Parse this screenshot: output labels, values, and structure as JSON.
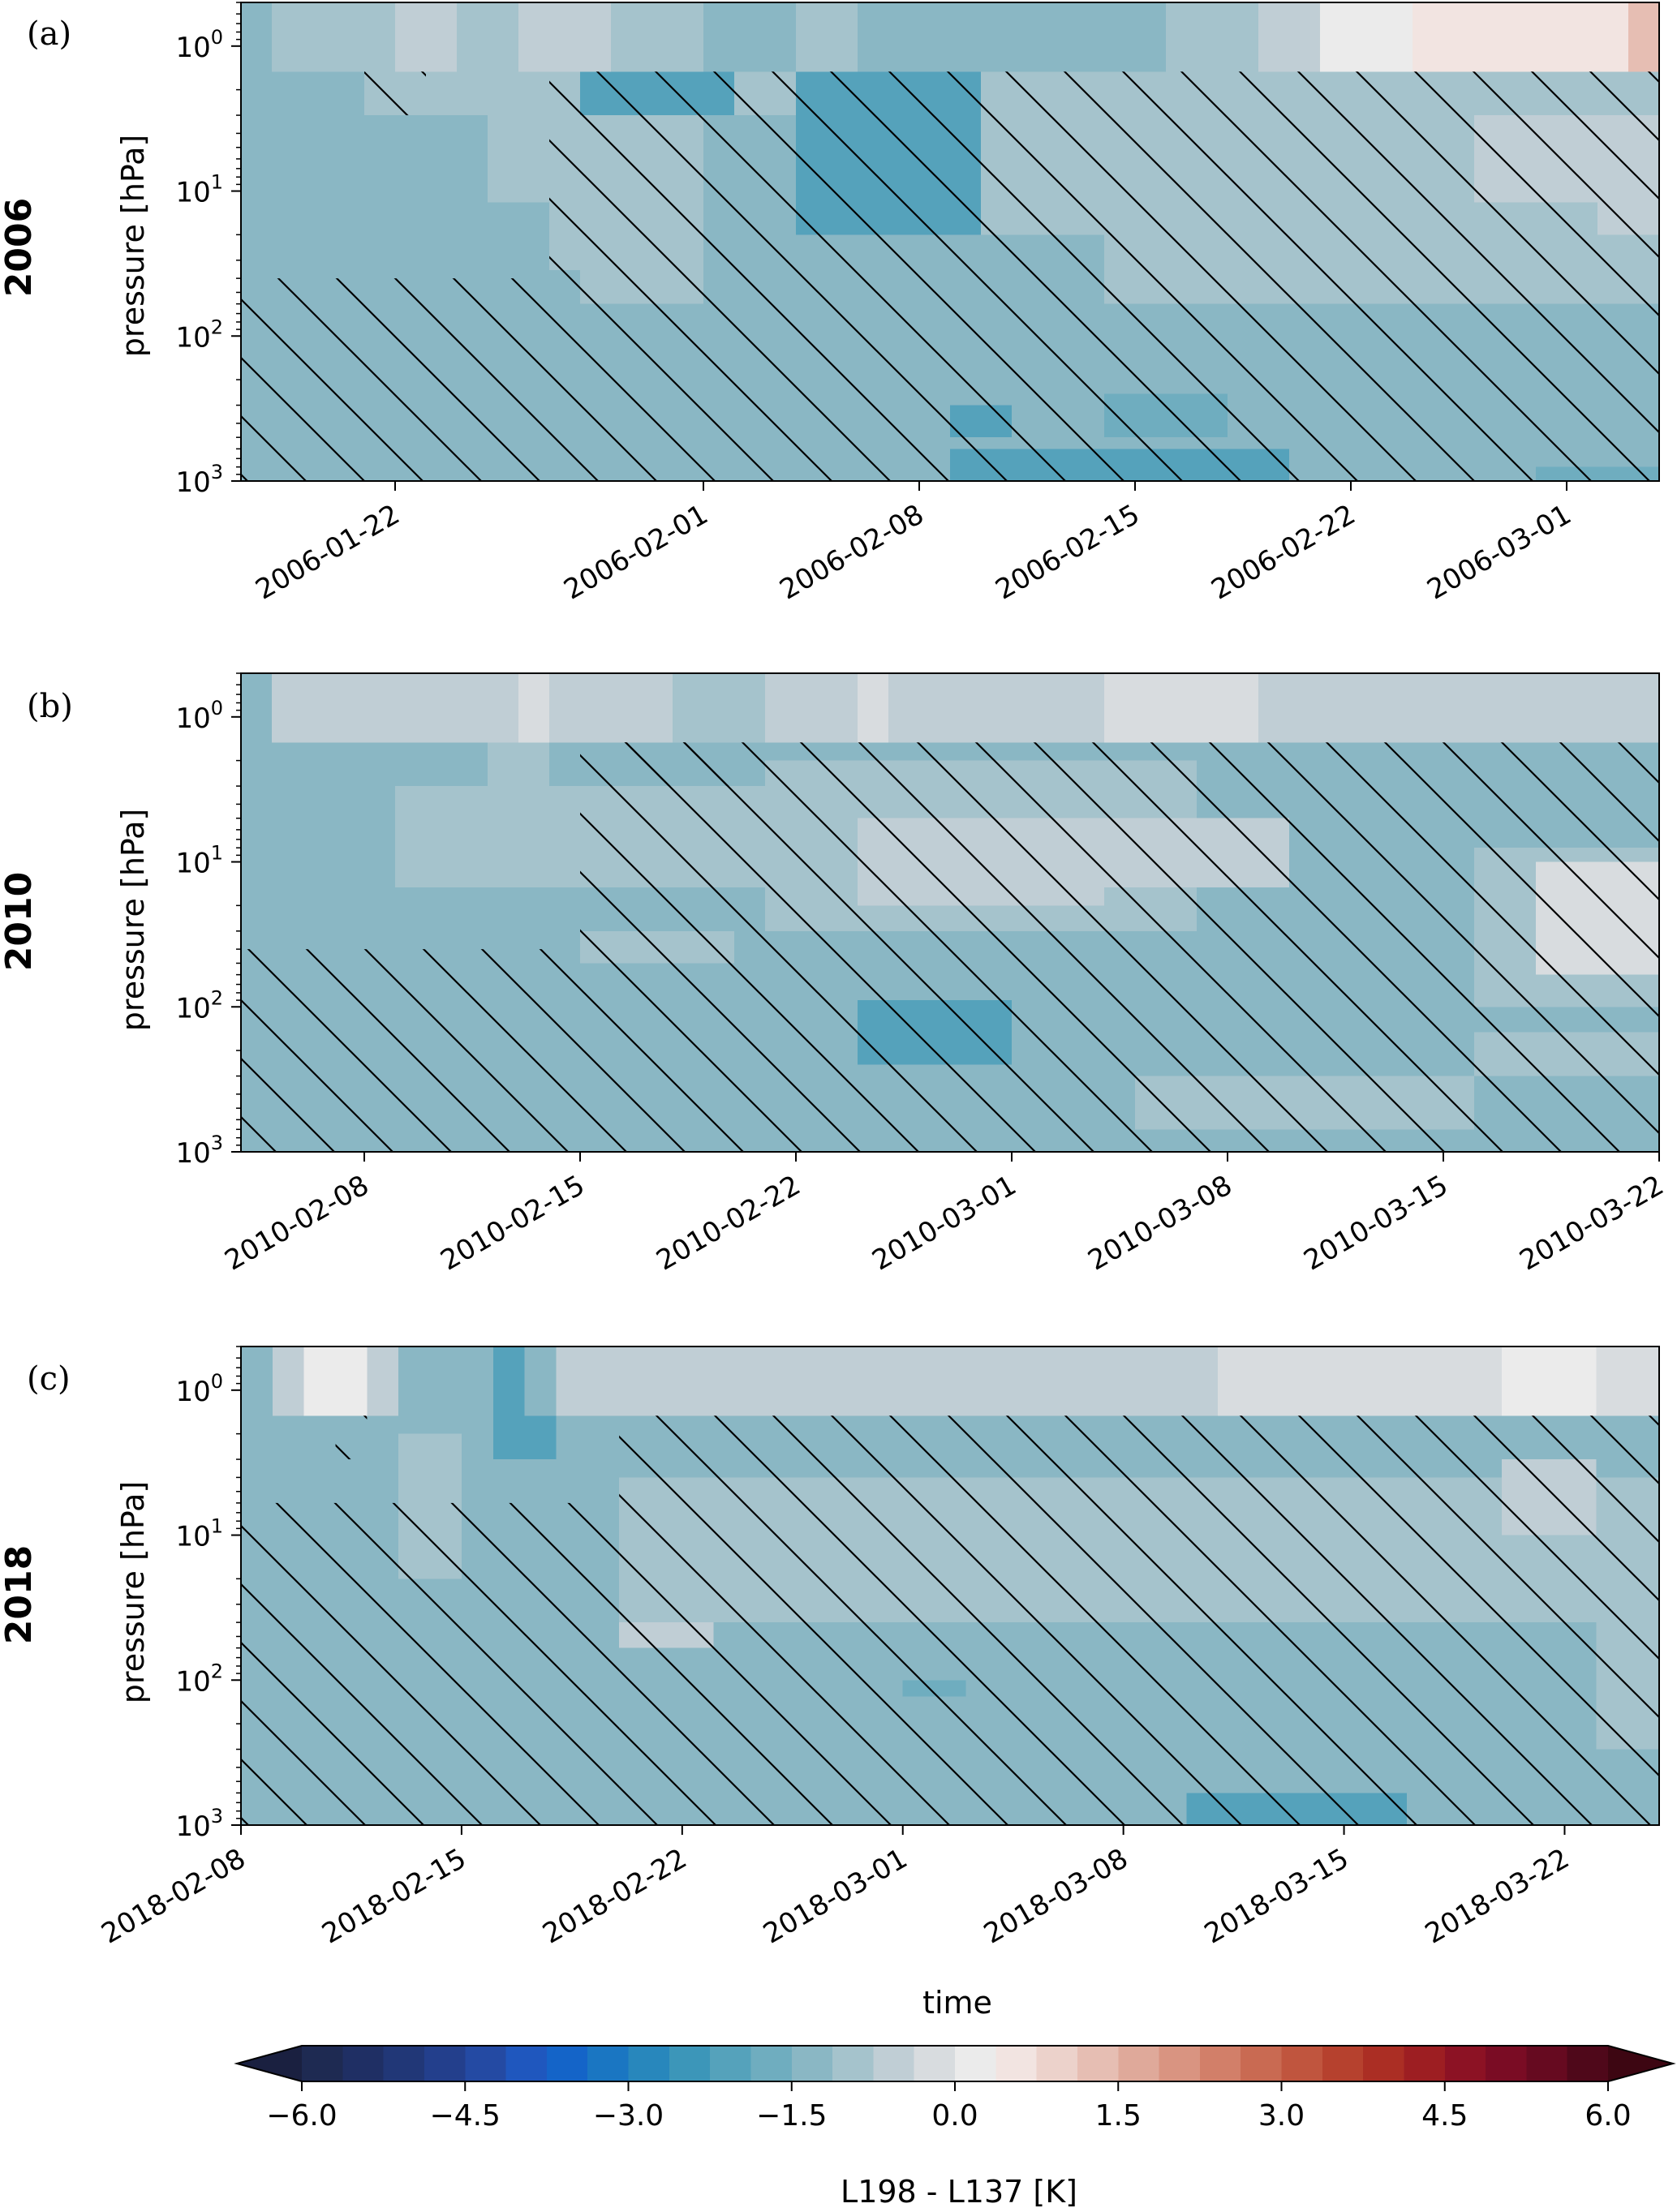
{
  "chart_data": [
    {
      "type": "heatmap",
      "panel_label": "(a)",
      "year_label": "2006",
      "ylabel": "pressure [hPa]",
      "y_scale": "log",
      "y_inverted": true,
      "y_ticks": [
        {
          "base": "10",
          "exp": "0"
        },
        {
          "base": "10",
          "exp": "1"
        },
        {
          "base": "10",
          "exp": "2"
        },
        {
          "base": "10",
          "exp": "3"
        }
      ],
      "x_start": "2006-01-17",
      "x_end": "2006-03-04",
      "x_ticks": [
        "2006-01-22",
        "2006-02-01",
        "2006-02-08",
        "2006-02-15",
        "2006-02-22",
        "2006-03-01"
      ],
      "regions": [
        {
          "t0": 0,
          "t1": 1,
          "p0": 0.5,
          "p1": 1.5,
          "v": 0.0
        },
        {
          "t0": 1,
          "t1": 46,
          "p0": 0.5,
          "p1": 1.5,
          "v": 0.6
        },
        {
          "t0": 5,
          "t1": 7,
          "p0": 0.5,
          "p1": 1.5,
          "v": 1.2
        },
        {
          "t0": 9,
          "t1": 12,
          "p0": 0.5,
          "p1": 1.5,
          "v": 1.0
        },
        {
          "t0": 15,
          "t1": 18,
          "p0": 0.5,
          "p1": 1.5,
          "v": 0.2
        },
        {
          "t0": 20,
          "t1": 24,
          "p0": 0.5,
          "p1": 1.5,
          "v": 0.4
        },
        {
          "t0": 24,
          "t1": 30,
          "p0": 0.5,
          "p1": 1.5,
          "v": 0.2
        },
        {
          "t0": 30,
          "t1": 33,
          "p0": 0.5,
          "p1": 1.5,
          "v": 0.8
        },
        {
          "t0": 33,
          "t1": 35,
          "p0": 0.5,
          "p1": 1.5,
          "v": 1.3
        },
        {
          "t0": 35,
          "t1": 38,
          "p0": 0.5,
          "p1": 1.5,
          "v": 2.0
        },
        {
          "t0": 38,
          "t1": 46,
          "p0": 0.5,
          "p1": 1.5,
          "v": 2.8
        },
        {
          "t0": 45,
          "t1": 46,
          "p0": 0.5,
          "p1": 1.5,
          "v": 3.6
        },
        {
          "t0": 0,
          "t1": 46,
          "p0": 1.5,
          "p1": 1000,
          "v": 0.2
        },
        {
          "t0": 4,
          "t1": 46,
          "p0": 1.5,
          "p1": 3,
          "v": 0.6
        },
        {
          "t0": 8,
          "t1": 15,
          "p0": 3,
          "p1": 12,
          "v": 0.6
        },
        {
          "t0": 10,
          "t1": 15,
          "p0": 12,
          "p1": 35,
          "v": 0.6
        },
        {
          "t0": 11,
          "t1": 15,
          "p0": 35,
          "p1": 60,
          "v": 0.6
        },
        {
          "t0": 11,
          "t1": 16,
          "p0": 1.5,
          "p1": 3,
          "v": -0.8
        },
        {
          "t0": 18,
          "t1": 24,
          "p0": 1.5,
          "p1": 20,
          "v": -0.8
        },
        {
          "t0": 24,
          "t1": 46,
          "p0": 3,
          "p1": 20,
          "v": 0.6
        },
        {
          "t0": 28,
          "t1": 46,
          "p0": 20,
          "p1": 60,
          "v": 0.6
        },
        {
          "t0": 40,
          "t1": 46,
          "p0": 3,
          "p1": 12,
          "v": 1.0
        },
        {
          "t0": 44,
          "t1": 46,
          "p0": 5,
          "p1": 20,
          "v": 1.3
        },
        {
          "t0": 0,
          "t1": 7,
          "p0": 40,
          "p1": 1000,
          "v": 0.0
        },
        {
          "t0": 23,
          "t1": 34,
          "p0": 600,
          "p1": 1000,
          "v": -0.8
        },
        {
          "t0": 23,
          "t1": 25,
          "p0": 300,
          "p1": 500,
          "v": -0.8
        },
        {
          "t0": 28,
          "t1": 32,
          "p0": 250,
          "p1": 500,
          "v": -0.4
        },
        {
          "t0": 42,
          "t1": 46,
          "p0": 800,
          "p1": 1000,
          "v": -0.4
        }
      ],
      "hatch_regions": [
        {
          "t0": 10,
          "t1": 46,
          "p0": 1.5,
          "p1": 1000
        },
        {
          "t0": 0,
          "t1": 10,
          "p0": 40,
          "p1": 1000
        },
        {
          "t0": 4,
          "t1": 6,
          "p0": 1.5,
          "p1": 3
        }
      ]
    },
    {
      "type": "heatmap",
      "panel_label": "(b)",
      "year_label": "2010",
      "ylabel": "pressure [hPa]",
      "y_scale": "log",
      "y_inverted": true,
      "y_ticks": [
        {
          "base": "10",
          "exp": "0"
        },
        {
          "base": "10",
          "exp": "1"
        },
        {
          "base": "10",
          "exp": "2"
        },
        {
          "base": "10",
          "exp": "3"
        }
      ],
      "x_start": "2010-02-04",
      "x_end": "2010-03-22",
      "x_ticks": [
        "2010-02-08",
        "2010-02-15",
        "2010-02-22",
        "2010-03-01",
        "2010-03-08",
        "2010-03-15",
        "2010-03-22"
      ],
      "regions": [
        {
          "t0": 0,
          "t1": 1,
          "p0": 0.5,
          "p1": 1.5,
          "v": 0.2
        },
        {
          "t0": 1,
          "t1": 47,
          "p0": 0.5,
          "p1": 1.5,
          "v": 1.2
        },
        {
          "t0": 2,
          "t1": 5,
          "p0": 0.5,
          "p1": 1.5,
          "v": 1.4
        },
        {
          "t0": 9,
          "t1": 10,
          "p0": 0.5,
          "p1": 1.5,
          "v": 1.6
        },
        {
          "t0": 14,
          "t1": 17,
          "p0": 0.5,
          "p1": 1.5,
          "v": 0.9
        },
        {
          "t0": 20,
          "t1": 21,
          "p0": 0.5,
          "p1": 1.5,
          "v": 1.6
        },
        {
          "t0": 28,
          "t1": 33,
          "p0": 0.5,
          "p1": 1.5,
          "v": 1.5
        },
        {
          "t0": 0,
          "t1": 47,
          "p0": 1.5,
          "p1": 1000,
          "v": 0.2
        },
        {
          "t0": 5,
          "t1": 20,
          "p0": 3,
          "p1": 15,
          "v": 0.6
        },
        {
          "t0": 8,
          "t1": 10,
          "p0": 1.5,
          "p1": 3,
          "v": 0.6
        },
        {
          "t0": 17,
          "t1": 31,
          "p0": 2,
          "p1": 30,
          "v": 0.8
        },
        {
          "t0": 20,
          "t1": 28,
          "p0": 5,
          "p1": 20,
          "v": 1.0
        },
        {
          "t0": 28,
          "t1": 34,
          "p0": 5,
          "p1": 15,
          "v": 1.3
        },
        {
          "t0": 11,
          "t1": 16,
          "p0": 30,
          "p1": 50,
          "v": 0.6
        },
        {
          "t0": 40,
          "t1": 47,
          "p0": 8,
          "p1": 100,
          "v": 0.8
        },
        {
          "t0": 42,
          "t1": 47,
          "p0": 10,
          "p1": 60,
          "v": 1.5
        },
        {
          "t0": 0,
          "t1": 2,
          "p0": 60,
          "p1": 1000,
          "v": 0.0
        },
        {
          "t0": 20,
          "t1": 25,
          "p0": 90,
          "p1": 250,
          "v": -0.8
        },
        {
          "t0": 29,
          "t1": 40,
          "p0": 300,
          "p1": 700,
          "v": 0.6
        },
        {
          "t0": 40,
          "t1": 46,
          "p0": 150,
          "p1": 300,
          "v": 0.6
        }
      ],
      "hatch_regions": [
        {
          "t0": 11,
          "t1": 47,
          "p0": 1.5,
          "p1": 1000
        },
        {
          "t0": 0,
          "t1": 11,
          "p0": 40,
          "p1": 1000
        },
        {
          "t0": 12,
          "t1": 16,
          "p0": 1.5,
          "p1": 3
        }
      ]
    },
    {
      "type": "heatmap",
      "panel_label": "(c)",
      "year_label": "2018",
      "ylabel": "pressure [hPa]",
      "xlabel": "time",
      "y_scale": "log",
      "y_inverted": true,
      "y_ticks": [
        {
          "base": "10",
          "exp": "0"
        },
        {
          "base": "10",
          "exp": "1"
        },
        {
          "base": "10",
          "exp": "2"
        },
        {
          "base": "10",
          "exp": "3"
        }
      ],
      "x_start": "2018-02-08",
      "x_end": "2018-03-25",
      "x_ticks": [
        "2018-02-08",
        "2018-02-15",
        "2018-02-22",
        "2018-03-01",
        "2018-03-08",
        "2018-03-15",
        "2018-03-22"
      ],
      "regions": [
        {
          "t0": 0,
          "t1": 1,
          "p0": 0.5,
          "p1": 1.5,
          "v": 0.3
        },
        {
          "t0": 1,
          "t1": 46,
          "p0": 0.5,
          "p1": 1.5,
          "v": 1.0
        },
        {
          "t0": 2,
          "t1": 4,
          "p0": 0.5,
          "p1": 1.5,
          "v": 2.2
        },
        {
          "t0": 5,
          "t1": 10,
          "p0": 0.5,
          "p1": 1.5,
          "v": 0.2
        },
        {
          "t0": 8,
          "t1": 9,
          "p0": 0.5,
          "p1": 1.5,
          "v": -0.8
        },
        {
          "t0": 11,
          "t1": 19,
          "p0": 0.5,
          "p1": 1.5,
          "v": 1.2
        },
        {
          "t0": 19,
          "t1": 31,
          "p0": 0.5,
          "p1": 1.5,
          "v": 1.3
        },
        {
          "t0": 31,
          "t1": 46,
          "p0": 0.5,
          "p1": 1.5,
          "v": 1.6
        },
        {
          "t0": 40,
          "t1": 43,
          "p0": 0.5,
          "p1": 1.5,
          "v": 2.0
        },
        {
          "t0": 0,
          "t1": 46,
          "p0": 1.5,
          "p1": 1000,
          "v": 0.2
        },
        {
          "t0": 8,
          "t1": 10,
          "p0": 1.5,
          "p1": 3,
          "v": -0.8
        },
        {
          "t0": 5,
          "t1": 7,
          "p0": 2,
          "p1": 20,
          "v": 0.6
        },
        {
          "t0": 12,
          "t1": 46,
          "p0": 4,
          "p1": 40,
          "v": 0.6
        },
        {
          "t0": 14,
          "t1": 42,
          "p0": 4,
          "p1": 20,
          "v": 0.9
        },
        {
          "t0": 12,
          "t1": 15,
          "p0": 40,
          "p1": 60,
          "v": 1.0
        },
        {
          "t0": 40,
          "t1": 43,
          "p0": 3,
          "p1": 10,
          "v": 1.1
        },
        {
          "t0": 43,
          "t1": 46,
          "p0": 20,
          "p1": 300,
          "v": 0.6
        },
        {
          "t0": 0,
          "t1": 1,
          "p0": 400,
          "p1": 1000,
          "v": 0.0
        },
        {
          "t0": 21,
          "t1": 23,
          "p0": 100,
          "p1": 130,
          "v": -0.4
        },
        {
          "t0": 30,
          "t1": 37,
          "p0": 600,
          "p1": 1000,
          "v": -0.6
        }
      ],
      "hatch_regions": [
        {
          "t0": 12,
          "t1": 46,
          "p0": 1.5,
          "p1": 1000
        },
        {
          "t0": 0,
          "t1": 12,
          "p0": 6,
          "p1": 1000
        },
        {
          "t0": 3,
          "t1": 4,
          "p0": 1.5,
          "p1": 3
        }
      ]
    }
  ],
  "colorbar": {
    "label": "L198 - L137 [K]",
    "vmin": -6.0,
    "vmax": 6.0,
    "step": 0.5,
    "extend": "both",
    "tick_labels": [
      "−6.0",
      "−4.5",
      "−3.0",
      "−1.5",
      "0.0",
      "1.5",
      "3.0",
      "4.5",
      "6.0"
    ],
    "tick_values": [
      -6.0,
      -4.5,
      -3.0,
      -1.5,
      0.0,
      1.5,
      3.0,
      4.5,
      6.0
    ],
    "colors": [
      "#1e2a52",
      "#1f2f64",
      "#213777",
      "#233f8c",
      "#244aa3",
      "#1f57be",
      "#1464c8",
      "#1a76c2",
      "#2887bc",
      "#3c96b9",
      "#55a2bb",
      "#6fadbf",
      "#8ab7c4",
      "#a5c3cc",
      "#c0ced5",
      "#d8dcdf",
      "#ebebeb",
      "#f2e4e1",
      "#ecd2cb",
      "#e6beb3",
      "#dfa99a",
      "#d99481",
      "#d27f69",
      "#c96a52",
      "#c0553e",
      "#b6412e",
      "#ab2e24",
      "#9d1e22",
      "#8c1224",
      "#7a0c24",
      "#660a20",
      "#4f081a"
    ],
    "under_color": "#1a2040",
    "over_color": "#3d0612"
  }
}
